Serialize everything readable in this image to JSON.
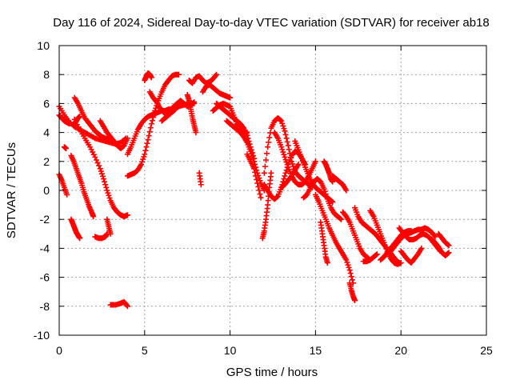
{
  "chart_data": {
    "type": "scatter",
    "title": "Day 116 of 2024, Sidereal Day-to-day VTEC variation (SDTVAR) for receiver ab18",
    "xlabel": "GPS time / hours",
    "ylabel": "SDTVAR / TECUs",
    "xlim": [
      0,
      25
    ],
    "ylim": [
      -10,
      10
    ],
    "xticks": [
      0,
      5,
      10,
      15,
      20,
      25
    ],
    "yticks": [
      -10,
      -8,
      -6,
      -4,
      -2,
      0,
      2,
      4,
      6,
      8,
      10
    ],
    "xtick_labels": [
      "0",
      "5",
      "10",
      "15",
      "20",
      "25"
    ],
    "ytick_labels": [
      "-10",
      "-8",
      "-6",
      "-4",
      "-2",
      "0",
      "2",
      "4",
      "6",
      "8",
      "10"
    ],
    "grid": true,
    "marker": "+",
    "color": "#ff0000",
    "tracks": [
      {
        "x": [
          0.0,
          0.3,
          0.6,
          0.9,
          1.2,
          1.5,
          1.8,
          2.1,
          2.4,
          2.7,
          3.0,
          3.3,
          3.6,
          3.9
        ],
        "y": [
          5.8,
          5.2,
          4.7,
          4.4,
          4.2,
          4.0,
          3.8,
          3.6,
          3.5,
          3.4,
          3.3,
          3.2,
          3.3,
          3.6
        ]
      },
      {
        "x": [
          0.0,
          0.15,
          0.3,
          0.45,
          0.6
        ],
        "y": [
          5.2,
          5.0,
          4.8,
          4.7,
          4.6
        ]
      },
      {
        "x": [
          0.9,
          1.0,
          1.1,
          1.2
        ],
        "y": [
          4.6,
          4.8,
          5.0,
          5.1
        ]
      },
      {
        "x": [
          0.9,
          1.1,
          1.3,
          1.5,
          1.7,
          1.9,
          2.1,
          2.3,
          2.5,
          2.7,
          2.9
        ],
        "y": [
          6.4,
          6.0,
          5.5,
          5.0,
          4.7,
          4.4,
          4.1,
          3.9,
          3.7,
          3.6,
          3.5
        ]
      },
      {
        "x": [
          2.4,
          2.6,
          2.8,
          3.0,
          3.2,
          3.4,
          3.6,
          3.8,
          4.0
        ],
        "y": [
          4.8,
          4.4,
          4.0,
          3.7,
          3.4,
          3.1,
          2.9,
          3.1,
          3.6
        ]
      },
      {
        "x": [
          0.9,
          1.2,
          1.5,
          1.8,
          2.1,
          2.4,
          2.6,
          2.8,
          3.0,
          3.2,
          3.4,
          3.6,
          3.8,
          4.0
        ],
        "y": [
          4.9,
          4.2,
          3.6,
          3.0,
          2.3,
          1.5,
          0.8,
          0.0,
          -0.7,
          -1.2,
          -1.5,
          -1.7,
          -1.8,
          -1.7
        ]
      },
      {
        "x": [
          0.0,
          0.15,
          0.3,
          0.45
        ],
        "y": [
          1.1,
          0.7,
          0.2,
          -0.3
        ]
      },
      {
        "x": [
          0.3,
          0.4
        ],
        "y": [
          3.0,
          2.9
        ]
      },
      {
        "x": [
          0.7,
          0.85,
          1.0,
          1.15,
          1.3,
          1.45,
          1.6,
          1.75,
          1.9,
          2.0
        ],
        "y": [
          2.4,
          2.0,
          1.5,
          1.0,
          0.5,
          -0.1,
          -0.6,
          -1.1,
          -1.5,
          -1.8
        ]
      },
      {
        "x": [
          0.7,
          0.8,
          0.9,
          1.0,
          1.1,
          1.2
        ],
        "y": [
          -2.0,
          -2.3,
          -2.6,
          -2.9,
          -3.1,
          -3.3
        ]
      },
      {
        "x": [
          2.1,
          2.3,
          2.5,
          2.7,
          2.8
        ],
        "y": [
          -3.2,
          -3.3,
          -3.3,
          -3.2,
          -3.0
        ]
      },
      {
        "x": [
          2.8,
          2.9,
          3.0
        ],
        "y": [
          -2.0,
          -2.5,
          -3.0
        ]
      },
      {
        "x": [
          3.0,
          3.3,
          3.6,
          3.8,
          4.0
        ],
        "y": [
          -7.9,
          -7.9,
          -7.8,
          -7.7,
          -8.0
        ]
      },
      {
        "x": [
          4.0,
          4.2,
          4.4,
          4.6,
          4.8,
          5.0,
          5.2,
          5.4,
          5.6,
          5.8,
          6.0,
          6.2,
          6.4,
          6.6,
          6.8,
          7.0,
          7.3,
          7.6,
          7.9
        ],
        "y": [
          2.5,
          3.0,
          3.6,
          4.2,
          4.6,
          4.9,
          5.1,
          5.2,
          5.3,
          5.4,
          5.5,
          5.5,
          5.6,
          5.6,
          5.7,
          5.8,
          5.9,
          6.0,
          6.0
        ]
      },
      {
        "x": [
          4.0,
          4.2,
          4.4,
          4.6,
          4.8,
          5.0,
          5.2,
          5.4,
          5.6,
          5.8,
          6.0,
          6.2,
          6.4,
          6.6,
          6.8,
          7.0
        ],
        "y": [
          1.0,
          1.1,
          1.2,
          1.4,
          1.8,
          2.5,
          3.5,
          4.6,
          5.5,
          6.2,
          6.8,
          7.3,
          7.6,
          7.9,
          8.0,
          8.0
        ]
      },
      {
        "x": [
          5.0,
          5.1,
          5.2,
          5.3,
          5.4
        ],
        "y": [
          7.6,
          7.9,
          8.1,
          8.0,
          7.8
        ]
      },
      {
        "x": [
          5.3,
          5.5,
          5.7,
          5.9,
          6.1,
          6.3,
          6.5,
          6.7,
          6.9,
          7.1,
          7.3,
          7.5,
          7.7,
          7.9
        ],
        "y": [
          6.8,
          6.4,
          6.1,
          5.7,
          5.4,
          5.2,
          5.4,
          5.8,
          6.0,
          6.2,
          6.0,
          5.8,
          5.9,
          6.1
        ]
      },
      {
        "x": [
          6.0,
          6.2,
          6.4,
          6.6,
          6.8
        ],
        "y": [
          4.8,
          5.0,
          5.2,
          5.4,
          5.6
        ]
      },
      {
        "x": [
          7.5,
          7.6,
          7.7,
          7.8,
          7.9,
          8.0
        ],
        "y": [
          6.6,
          6.2,
          5.6,
          5.0,
          4.5,
          4.0
        ]
      },
      {
        "x": [
          7.6,
          7.8,
          8.0,
          8.2,
          8.4,
          8.6,
          8.8,
          9.0,
          9.2
        ],
        "y": [
          7.6,
          7.4,
          7.8,
          7.9,
          7.6,
          7.4,
          7.5,
          7.7,
          8.0
        ]
      },
      {
        "x": [
          8.4,
          8.6,
          8.8,
          9.0,
          9.2,
          9.4,
          9.6,
          9.8,
          10.0
        ],
        "y": [
          6.8,
          7.2,
          7.3,
          7.1,
          6.9,
          6.7,
          6.6,
          6.5,
          6.4
        ]
      },
      {
        "x": [
          9.2,
          9.4,
          9.6,
          9.8,
          10.0,
          10.2,
          10.4,
          10.6,
          10.8,
          11.0,
          11.2,
          11.4
        ],
        "y": [
          6.0,
          5.8,
          5.6,
          5.4,
          5.2,
          5.0,
          4.8,
          4.6,
          4.3,
          3.8,
          3.0,
          2.2
        ]
      },
      {
        "x": [
          9.8,
          10.0,
          10.2,
          10.4,
          10.6,
          10.8,
          11.0,
          11.2,
          11.4,
          11.6,
          11.8,
          12.0
        ],
        "y": [
          4.8,
          4.6,
          4.4,
          4.2,
          4.0,
          3.7,
          3.3,
          2.7,
          2.0,
          1.2,
          0.5,
          0.0
        ]
      },
      {
        "x": [
          9.0,
          9.2,
          9.4,
          9.6,
          9.8,
          10.0,
          10.2,
          10.4,
          10.6,
          10.8,
          11.0
        ],
        "y": [
          5.5,
          5.7,
          5.9,
          6.0,
          5.9,
          5.8,
          5.2,
          4.6,
          4.3,
          4.1,
          4.0
        ]
      },
      {
        "x": [
          8.2,
          8.3
        ],
        "y": [
          1.2,
          0.4
        ]
      },
      {
        "x": [
          11.0,
          11.2,
          11.4,
          11.6,
          11.8
        ],
        "y": [
          2.5,
          2.0,
          1.5,
          0.5,
          -0.5
        ]
      },
      {
        "x": [
          11.9,
          12.0,
          12.1,
          12.2,
          12.3,
          12.4
        ],
        "y": [
          -3.3,
          -2.8,
          -2.0,
          -1.0,
          0.2,
          1.2
        ]
      },
      {
        "x": [
          12.0,
          12.2,
          12.4,
          12.6,
          12.8,
          13.0,
          13.2,
          13.4,
          13.6,
          13.8,
          14.0,
          14.2,
          14.4,
          14.6,
          14.8
        ],
        "y": [
          1.2,
          3.0,
          4.3,
          4.8,
          5.0,
          4.8,
          4.1,
          3.1,
          2.0,
          1.3,
          1.0,
          0.8,
          0.6,
          0.4,
          0.2
        ]
      },
      {
        "x": [
          12.0,
          12.2,
          12.4,
          12.6,
          12.8,
          13.0,
          13.2,
          13.4,
          13.6,
          13.8,
          14.0,
          14.2,
          14.4
        ],
        "y": [
          0.4,
          0.0,
          -0.4,
          -0.6,
          -0.4,
          0.2,
          1.0,
          1.8,
          2.4,
          2.7,
          2.6,
          2.2,
          1.8
        ]
      },
      {
        "x": [
          12.6,
          12.8,
          13.0,
          13.2,
          13.4,
          13.6,
          13.8,
          14.0,
          14.2,
          14.4,
          14.6,
          14.8,
          15.0
        ],
        "y": [
          4.0,
          3.6,
          3.0,
          2.3,
          1.6,
          1.0,
          0.6,
          0.4,
          0.4,
          0.6,
          1.0,
          1.5,
          2.0
        ]
      },
      {
        "x": [
          13.0,
          13.2,
          13.4,
          13.6,
          13.8,
          14.0
        ],
        "y": [
          0.2,
          0.4,
          0.7,
          1.0,
          1.4,
          1.8
        ]
      },
      {
        "x": [
          13.8,
          14.0,
          14.2,
          14.4,
          14.6,
          14.8,
          15.0,
          15.2,
          15.4,
          15.6,
          15.8,
          16.0
        ],
        "y": [
          3.4,
          2.8,
          2.2,
          1.6,
          1.0,
          0.5,
          0.2,
          0.0,
          -0.2,
          -0.4,
          -0.6,
          -0.8
        ]
      },
      {
        "x": [
          14.3,
          14.5,
          14.7,
          14.9,
          15.1,
          15.3,
          15.5,
          15.7,
          15.9,
          16.1,
          16.3,
          16.5
        ],
        "y": [
          -0.5,
          -0.3,
          0.2,
          0.6,
          0.8,
          0.6,
          0.1,
          -0.6,
          -1.2,
          -1.6,
          -1.8,
          -2.0
        ]
      },
      {
        "x": [
          15.0,
          15.2,
          15.4,
          15.6,
          15.8,
          16.0,
          16.2,
          16.4,
          16.6,
          16.8,
          17.0,
          17.2
        ],
        "y": [
          -0.3,
          -0.8,
          -1.4,
          -2.0,
          -2.6,
          -3.1,
          -3.6,
          -4.0,
          -4.4,
          -4.8,
          -5.5,
          -6.4
        ]
      },
      {
        "x": [
          15.3,
          15.4,
          15.5,
          15.6,
          15.7
        ],
        "y": [
          -2.2,
          -3.0,
          -3.8,
          -4.6,
          -5.0
        ]
      },
      {
        "x": [
          15.5,
          15.6,
          15.7,
          15.8,
          15.9,
          16.0
        ],
        "y": [
          2.0,
          1.8,
          1.5,
          1.2,
          0.8,
          0.6
        ]
      },
      {
        "x": [
          16.0,
          16.2,
          16.4,
          16.6,
          16.8
        ],
        "y": [
          1.0,
          0.8,
          0.6,
          0.4,
          0.0
        ]
      },
      {
        "x": [
          16.6,
          16.8,
          17.0,
          17.2,
          17.4,
          17.6,
          17.8,
          18.0,
          18.2
        ],
        "y": [
          -1.5,
          -1.8,
          -2.2,
          -2.8,
          -3.4,
          -4.0,
          -4.4,
          -4.6,
          -4.8
        ]
      },
      {
        "x": [
          17.0,
          17.1,
          17.2,
          17.3
        ],
        "y": [
          -6.4,
          -6.9,
          -7.3,
          -7.6
        ]
      },
      {
        "x": [
          17.3,
          17.5,
          17.7,
          17.9,
          18.1,
          18.3,
          18.5,
          18.7,
          18.9,
          19.1,
          19.3,
          19.5,
          19.7,
          19.9
        ],
        "y": [
          -1.2,
          -1.8,
          -2.2,
          -2.4,
          -2.6,
          -2.8,
          -3.0,
          -3.3,
          -3.6,
          -3.9,
          -4.2,
          -4.5,
          -4.8,
          -5.0
        ]
      },
      {
        "x": [
          18.2,
          18.4,
          18.6,
          18.8,
          19.0,
          19.2,
          19.4,
          19.6,
          19.8,
          20.0
        ],
        "y": [
          -1.4,
          -1.8,
          -2.4,
          -3.0,
          -3.6,
          -4.2,
          -4.7,
          -5.0,
          -5.1,
          -5.0
        ]
      },
      {
        "x": [
          18.8,
          19.0,
          19.2,
          19.4,
          19.6,
          19.8,
          20.0,
          20.2,
          20.4,
          20.6
        ],
        "y": [
          -4.8,
          -4.6,
          -4.3,
          -4.0,
          -3.7,
          -3.4,
          -3.1,
          -2.9,
          -2.8,
          -2.8
        ]
      },
      {
        "x": [
          19.4,
          19.6,
          19.8,
          20.0,
          20.2,
          20.4,
          20.6,
          20.8,
          21.0,
          21.2,
          21.4,
          21.6,
          21.8,
          22.0
        ],
        "y": [
          -4.2,
          -3.9,
          -3.6,
          -3.3,
          -3.1,
          -3.0,
          -2.9,
          -2.8,
          -2.7,
          -2.7,
          -2.6,
          -2.7,
          -2.9,
          -3.2
        ]
      },
      {
        "x": [
          19.9,
          20.1,
          20.3,
          20.5,
          20.7,
          20.9,
          21.1,
          21.3,
          21.5,
          21.7,
          21.9,
          22.1,
          22.3
        ],
        "y": [
          -2.6,
          -2.9,
          -3.2,
          -3.4,
          -3.4,
          -3.3,
          -3.1,
          -3.0,
          -3.1,
          -3.3,
          -3.6,
          -3.9,
          -4.2
        ]
      },
      {
        "x": [
          20.0,
          20.2,
          20.4,
          20.6,
          20.8,
          21.0,
          21.2
        ],
        "y": [
          -4.2,
          -4.5,
          -4.8,
          -5.0,
          -4.7,
          -4.4,
          -4.0
        ]
      },
      {
        "x": [
          21.8,
          22.0,
          22.2,
          22.4,
          22.6,
          22.8
        ],
        "y": [
          -3.4,
          -3.6,
          -3.9,
          -4.3,
          -4.5,
          -4.3
        ]
      },
      {
        "x": [
          22.2,
          22.4,
          22.6,
          22.8
        ],
        "y": [
          -3.0,
          -3.3,
          -3.6,
          -3.8
        ]
      },
      {
        "x": [
          17.8,
          18.0,
          18.2,
          18.4,
          18.6
        ],
        "y": [
          -4.9,
          -4.9,
          -4.8,
          -4.6,
          -4.4
        ]
      }
    ]
  }
}
